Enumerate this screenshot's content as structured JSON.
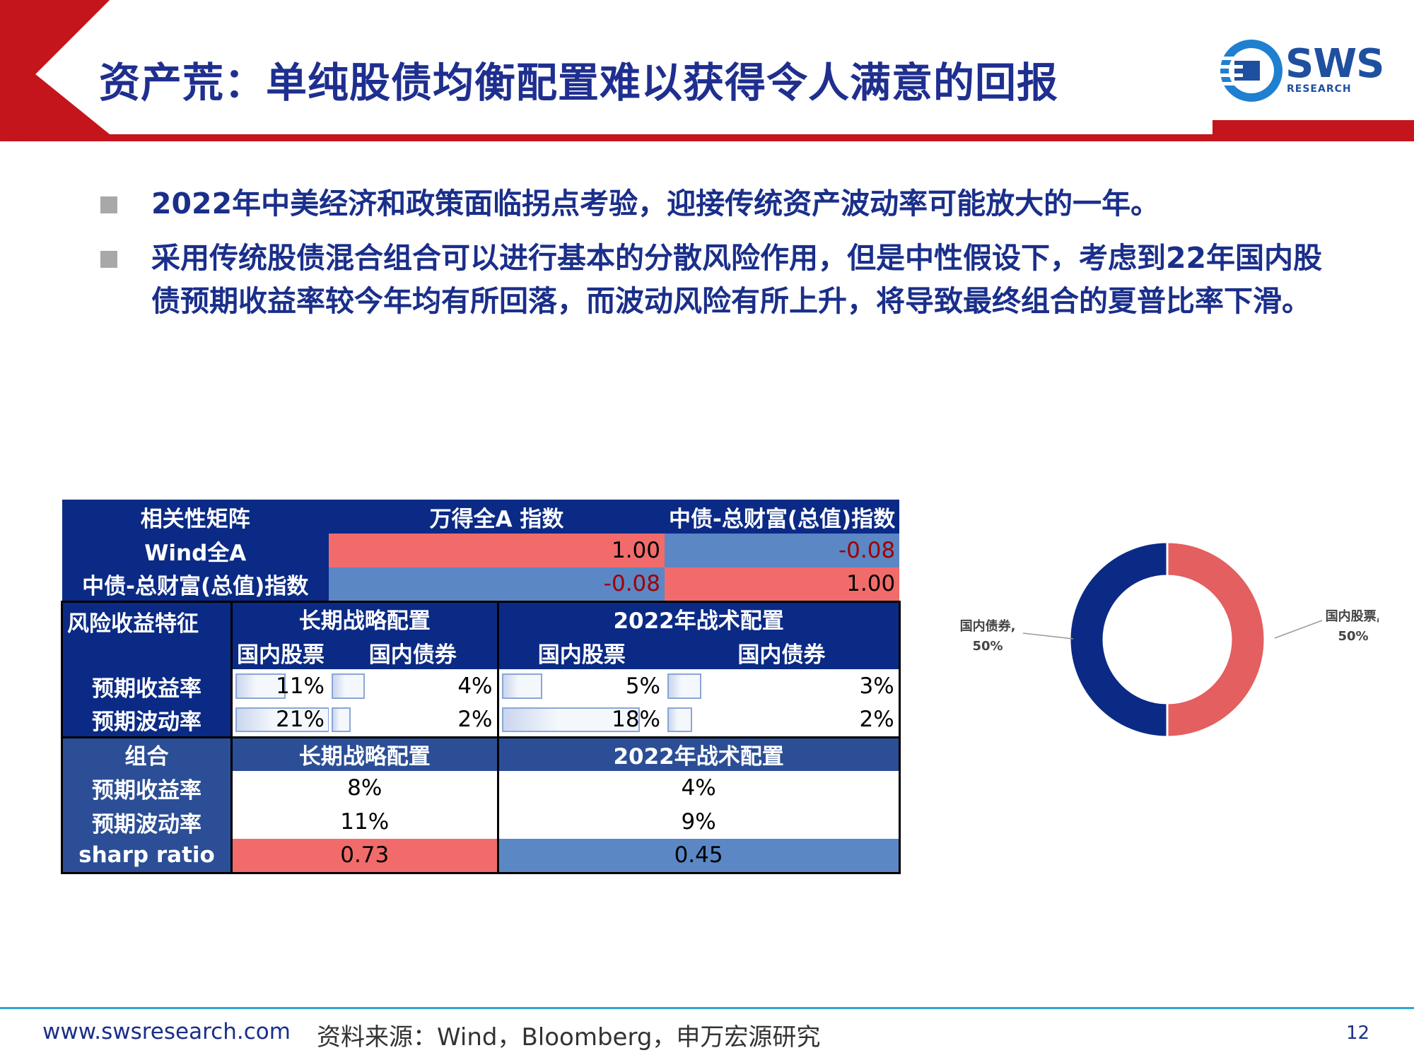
{
  "header": {
    "title": "资产荒：单纯股债均衡配置难以获得令人满意的回报",
    "logo_text": "SWS",
    "logo_sub": "RESEARCH"
  },
  "bullets": [
    "2022年中美经济和政策面临拐点考验，迎接传统资产波动率可能放大的一年。",
    "采用传统股债混合组合可以进行基本的分散风险作用，但是中性假设下，考虑到22年国内股债预期收益率较今年均有所回落，而波动风险有所上升，将导致最终组合的夏普比率下滑。"
  ],
  "corr": {
    "header": [
      "相关性矩阵",
      "万得全A 指数",
      "中债-总财富(总值)指数"
    ],
    "rows": [
      {
        "label": "Wind全A",
        "v1": "1.00",
        "v2": "-0.08"
      },
      {
        "label": "中债-总财富(总值)指数",
        "v1": "-0.08",
        "v2": "1.00"
      }
    ]
  },
  "risk": {
    "title": "风险收益特征",
    "group1": "长期战略配置",
    "group2": "2022年战术配置",
    "sub": [
      "国内股票",
      "国内债券",
      "国内股票",
      "国内债券"
    ],
    "rows": [
      {
        "label": "预期收益率",
        "values": [
          "11%",
          "4%",
          "5%",
          "3%"
        ],
        "levels": [
          0.52,
          0.19,
          0.24,
          0.14
        ]
      },
      {
        "label": "预期波动率",
        "values": [
          "21%",
          "2%",
          "18%",
          "2%"
        ],
        "levels": [
          1.0,
          0.1,
          0.86,
          0.1
        ]
      }
    ]
  },
  "portfolio": {
    "title": "组合",
    "group1": "长期战略配置",
    "group2": "2022年战术配置",
    "rows": [
      {
        "label": "预期收益率",
        "v1": "8%",
        "v2": "4%"
      },
      {
        "label": "预期波动率",
        "v1": "11%",
        "v2": "9%"
      },
      {
        "label": "sharp ratio",
        "v1": "0.73",
        "v2": "0.45"
      }
    ]
  },
  "chart_data": {
    "type": "pie",
    "categories": [
      "国内股票",
      "国内债券"
    ],
    "values": [
      50,
      50
    ],
    "labels": [
      {
        "name": "国内股票,",
        "pct": "50%"
      },
      {
        "name": "国内债券,",
        "pct": "50%"
      }
    ],
    "colors": [
      "#e35f60",
      "#0b2a85"
    ]
  },
  "footer": {
    "url": "www.swsresearch.com",
    "source": "资料来源：Wind，Bloomberg，申万宏源研究",
    "page": "12"
  }
}
